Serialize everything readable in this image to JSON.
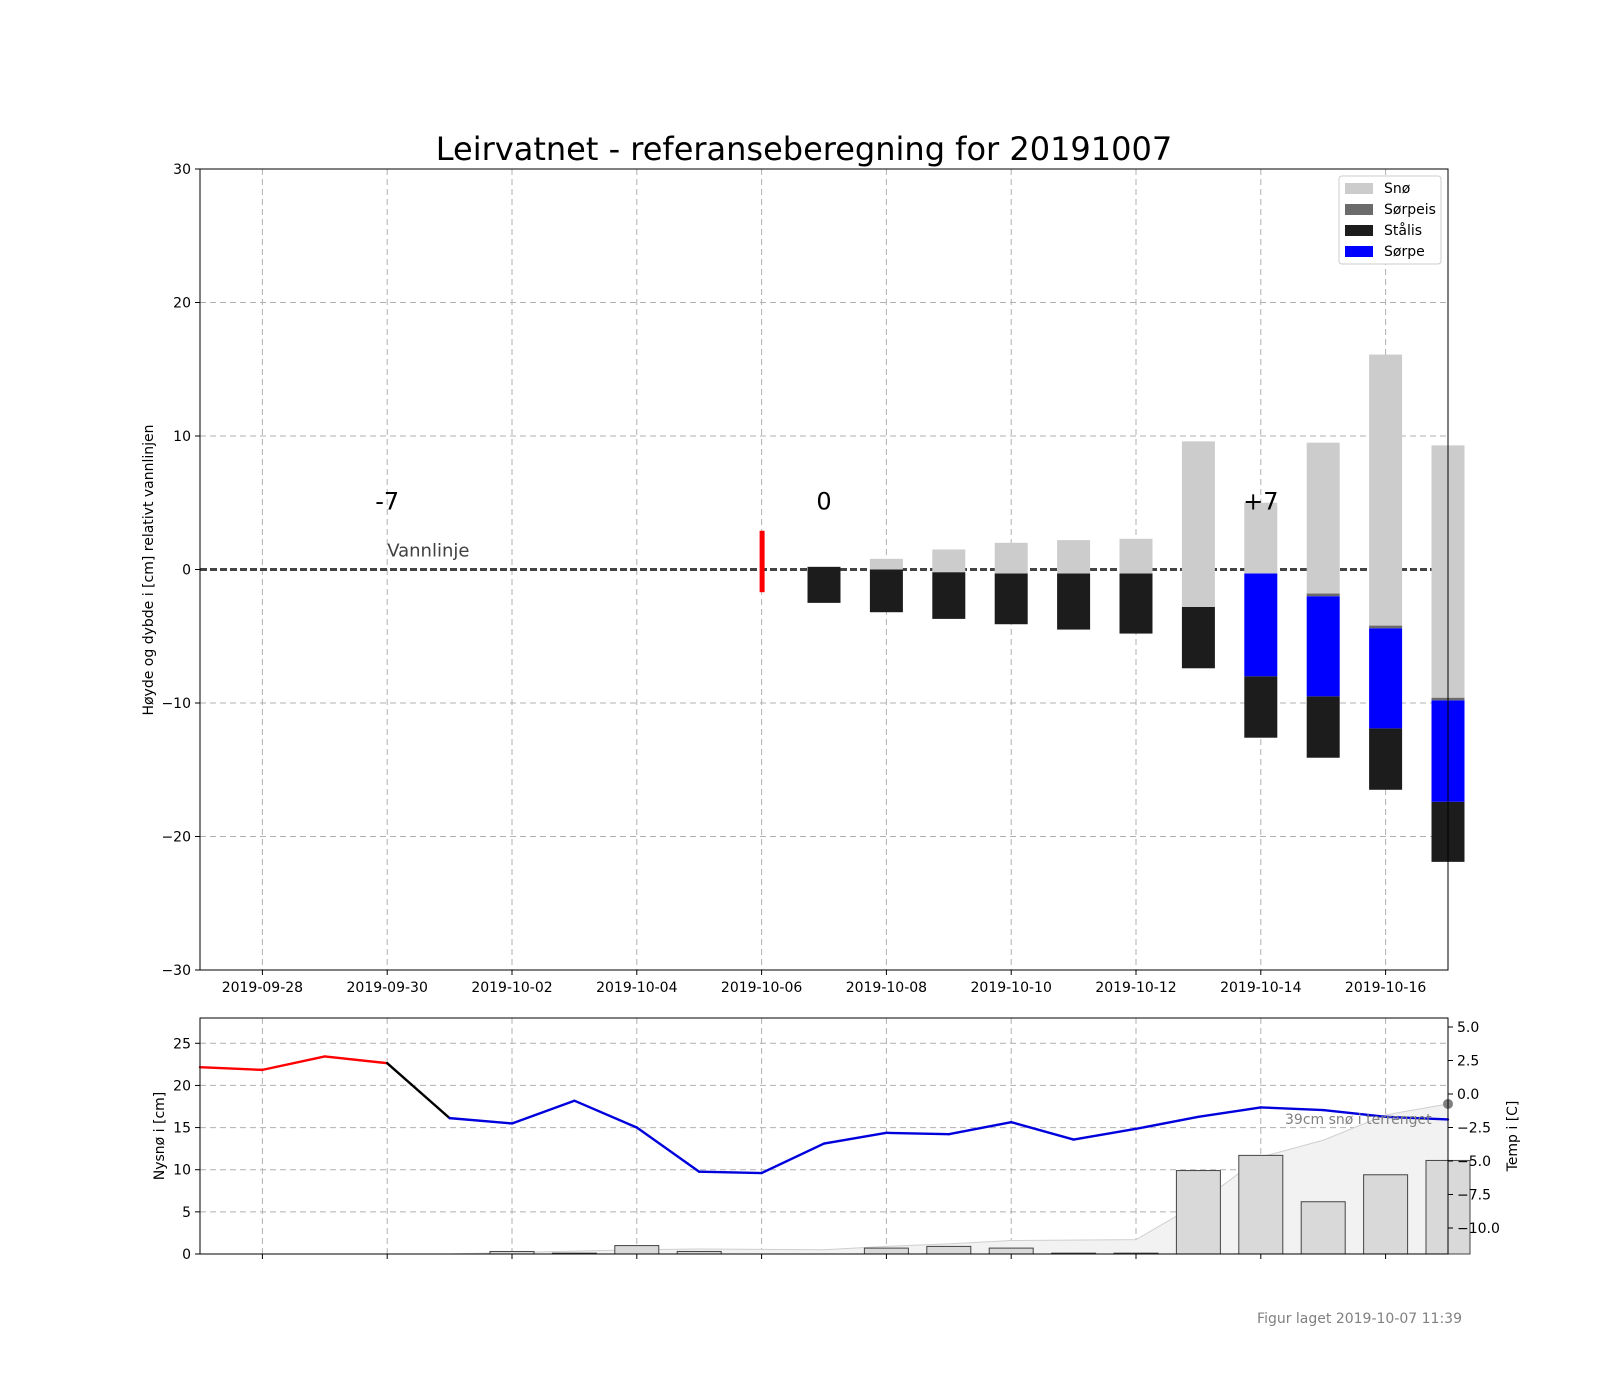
{
  "title": "Leirvatnet - referanseberegning for 20191007",
  "footer": "Figur laget 2019-10-07 11:39",
  "colors": {
    "sno": "#cccccc",
    "sorpeis": "#6b6b6b",
    "stalis": "#1c1c1c",
    "sorpe": "#0000ff",
    "red": "#ff0000",
    "blue": "#0000dd",
    "grid": "#b0b0b0"
  },
  "chart_data": [
    {
      "type": "bar",
      "title": "Leirvatnet - referanseberegning for 20191007",
      "ylabel": "Høyde og dybde i [cm] relativt vannlinjen",
      "ylim": [
        -30,
        30
      ],
      "yticks": [
        "30",
        "20",
        "10",
        "0",
        "−10",
        "−20",
        "−30"
      ],
      "xticks": [
        "2019-09-28",
        "2019-09-30",
        "2019-10-02",
        "2019-10-04",
        "2019-10-06",
        "2019-10-08",
        "2019-10-10",
        "2019-10-12",
        "2019-10-14",
        "2019-10-16"
      ],
      "grid": true,
      "legend": {
        "placement": "top-right",
        "entries": [
          "Snø",
          "Sørpeis",
          "Stålis",
          "Sørpe"
        ]
      },
      "waterline_label": "Vannlinje",
      "day_markers": [
        "-7",
        "0",
        "+7"
      ],
      "observation_bar": {
        "date": "2019-10-06",
        "from": -1.7,
        "to": 2.9
      },
      "stacks": [
        {
          "date": "2019-10-07",
          "segments": [
            {
              "type": "stalis",
              "from": -2.5,
              "to": 0.2
            }
          ]
        },
        {
          "date": "2019-10-08",
          "segments": [
            {
              "type": "stalis",
              "from": -3.2,
              "to": 0.0
            },
            {
              "type": "sno",
              "from": 0.0,
              "to": 0.8
            }
          ]
        },
        {
          "date": "2019-10-09",
          "segments": [
            {
              "type": "stalis",
              "from": -3.7,
              "to": -0.2
            },
            {
              "type": "sno",
              "from": -0.2,
              "to": 1.5
            }
          ]
        },
        {
          "date": "2019-10-10",
          "segments": [
            {
              "type": "stalis",
              "from": -4.1,
              "to": -0.3
            },
            {
              "type": "sno",
              "from": -0.3,
              "to": 2.0
            }
          ]
        },
        {
          "date": "2019-10-11",
          "segments": [
            {
              "type": "stalis",
              "from": -4.5,
              "to": -0.3
            },
            {
              "type": "sno",
              "from": -0.3,
              "to": 2.2
            }
          ]
        },
        {
          "date": "2019-10-12",
          "segments": [
            {
              "type": "stalis",
              "from": -4.8,
              "to": -0.3
            },
            {
              "type": "sno",
              "from": -0.3,
              "to": 2.3
            }
          ]
        },
        {
          "date": "2019-10-13",
          "segments": [
            {
              "type": "stalis",
              "from": -7.4,
              "to": -2.8
            },
            {
              "type": "sno",
              "from": -2.8,
              "to": 9.6
            }
          ]
        },
        {
          "date": "2019-10-14",
          "segments": [
            {
              "type": "stalis",
              "from": -12.6,
              "to": -8.0
            },
            {
              "type": "sorpe",
              "from": -8.0,
              "to": -0.3
            },
            {
              "type": "sno",
              "from": -0.3,
              "to": 5.0
            }
          ]
        },
        {
          "date": "2019-10-15",
          "segments": [
            {
              "type": "stalis",
              "from": -14.1,
              "to": -9.5
            },
            {
              "type": "sorpe",
              "from": -9.5,
              "to": -2.0
            },
            {
              "type": "sorpeis",
              "from": -2.0,
              "to": -1.8
            },
            {
              "type": "sno",
              "from": -1.8,
              "to": 9.5
            }
          ]
        },
        {
          "date": "2019-10-16",
          "segments": [
            {
              "type": "stalis",
              "from": -16.5,
              "to": -11.9
            },
            {
              "type": "sorpe",
              "from": -11.9,
              "to": -4.4
            },
            {
              "type": "sorpeis",
              "from": -4.4,
              "to": -4.2
            },
            {
              "type": "sno",
              "from": -4.2,
              "to": 16.1
            }
          ]
        },
        {
          "date": "2019-10-17",
          "segments": [
            {
              "type": "stalis",
              "from": -21.9,
              "to": -17.4
            },
            {
              "type": "sorpe",
              "from": -17.4,
              "to": -9.8
            },
            {
              "type": "sorpeis",
              "from": -9.8,
              "to": -9.6
            },
            {
              "type": "sno",
              "from": -9.6,
              "to": 9.3
            }
          ]
        }
      ]
    },
    {
      "type": "bar",
      "ylabel": "Nysnø i [cm]",
      "ylim": [
        0,
        28
      ],
      "yticks": [
        "25",
        "20",
        "15",
        "10",
        "5",
        "0"
      ],
      "ytick_values": [
        25,
        20,
        15,
        10,
        5,
        0
      ],
      "y2label": "Temp i [C]",
      "y2ticks": [
        "5.0",
        "2.5",
        "0.0",
        "−2.5",
        "−5.0",
        "−7.5",
        "−10.0"
      ],
      "y2tick_values": [
        5.0,
        2.5,
        0.0,
        -2.5,
        -5.0,
        -7.5,
        -10.0
      ],
      "annotation": "39cm snø i terrenget",
      "grid": true,
      "new_snow": [
        {
          "date": "2019-10-02",
          "value": 0.3
        },
        {
          "date": "2019-10-03",
          "value": 0.1
        },
        {
          "date": "2019-10-04",
          "value": 1.0
        },
        {
          "date": "2019-10-05",
          "value": 0.3
        },
        {
          "date": "2019-10-08",
          "value": 0.7
        },
        {
          "date": "2019-10-09",
          "value": 0.9
        },
        {
          "date": "2019-10-10",
          "value": 0.7
        },
        {
          "date": "2019-10-11",
          "value": 0.1
        },
        {
          "date": "2019-10-12",
          "value": 0.1
        },
        {
          "date": "2019-10-13",
          "value": 9.9
        },
        {
          "date": "2019-10-14",
          "value": 11.7
        },
        {
          "date": "2019-10-15",
          "value": 6.2
        },
        {
          "date": "2019-10-16",
          "value": 9.4
        },
        {
          "date": "2019-10-17",
          "value": 11.1
        }
      ],
      "snow_depth": [
        {
          "date": "2019-09-27",
          "value": 0
        },
        {
          "date": "2019-10-01",
          "value": 0
        },
        {
          "date": "2019-10-04",
          "value": 0.5
        },
        {
          "date": "2019-10-05",
          "value": 0.6
        },
        {
          "date": "2019-10-07",
          "value": 0.5
        },
        {
          "date": "2019-10-08",
          "value": 0.9
        },
        {
          "date": "2019-10-09",
          "value": 1.2
        },
        {
          "date": "2019-10-10",
          "value": 1.6
        },
        {
          "date": "2019-10-12",
          "value": 1.7
        },
        {
          "date": "2019-10-13",
          "value": 6.0
        },
        {
          "date": "2019-10-14",
          "value": 11.5
        },
        {
          "date": "2019-10-15",
          "value": 13.5
        },
        {
          "date": "2019-10-16",
          "value": 16.5
        },
        {
          "date": "2019-10-17",
          "value": 17.8
        }
      ],
      "temperature": [
        {
          "date": "2019-09-27",
          "value": 2.0
        },
        {
          "date": "2019-09-28",
          "value": 1.8
        },
        {
          "date": "2019-09-29",
          "value": 2.8
        },
        {
          "date": "2019-09-30",
          "value": 2.3
        },
        {
          "date": "2019-10-01",
          "value": -1.8
        },
        {
          "date": "2019-10-02",
          "value": -2.2
        },
        {
          "date": "2019-10-03",
          "value": -0.5
        },
        {
          "date": "2019-10-04",
          "value": -2.5
        },
        {
          "date": "2019-10-05",
          "value": -5.8
        },
        {
          "date": "2019-10-06",
          "value": -5.9
        },
        {
          "date": "2019-10-07",
          "value": -3.7
        },
        {
          "date": "2019-10-08",
          "value": -2.9
        },
        {
          "date": "2019-10-09",
          "value": -3.0
        },
        {
          "date": "2019-10-10",
          "value": -2.1
        },
        {
          "date": "2019-10-11",
          "value": -3.4
        },
        {
          "date": "2019-10-12",
          "value": -2.6
        },
        {
          "date": "2019-10-13",
          "value": -1.7
        },
        {
          "date": "2019-10-14",
          "value": -1.0
        },
        {
          "date": "2019-10-15",
          "value": -1.2
        },
        {
          "date": "2019-10-16",
          "value": -1.7
        },
        {
          "date": "2019-10-17",
          "value": -1.9
        }
      ]
    }
  ]
}
